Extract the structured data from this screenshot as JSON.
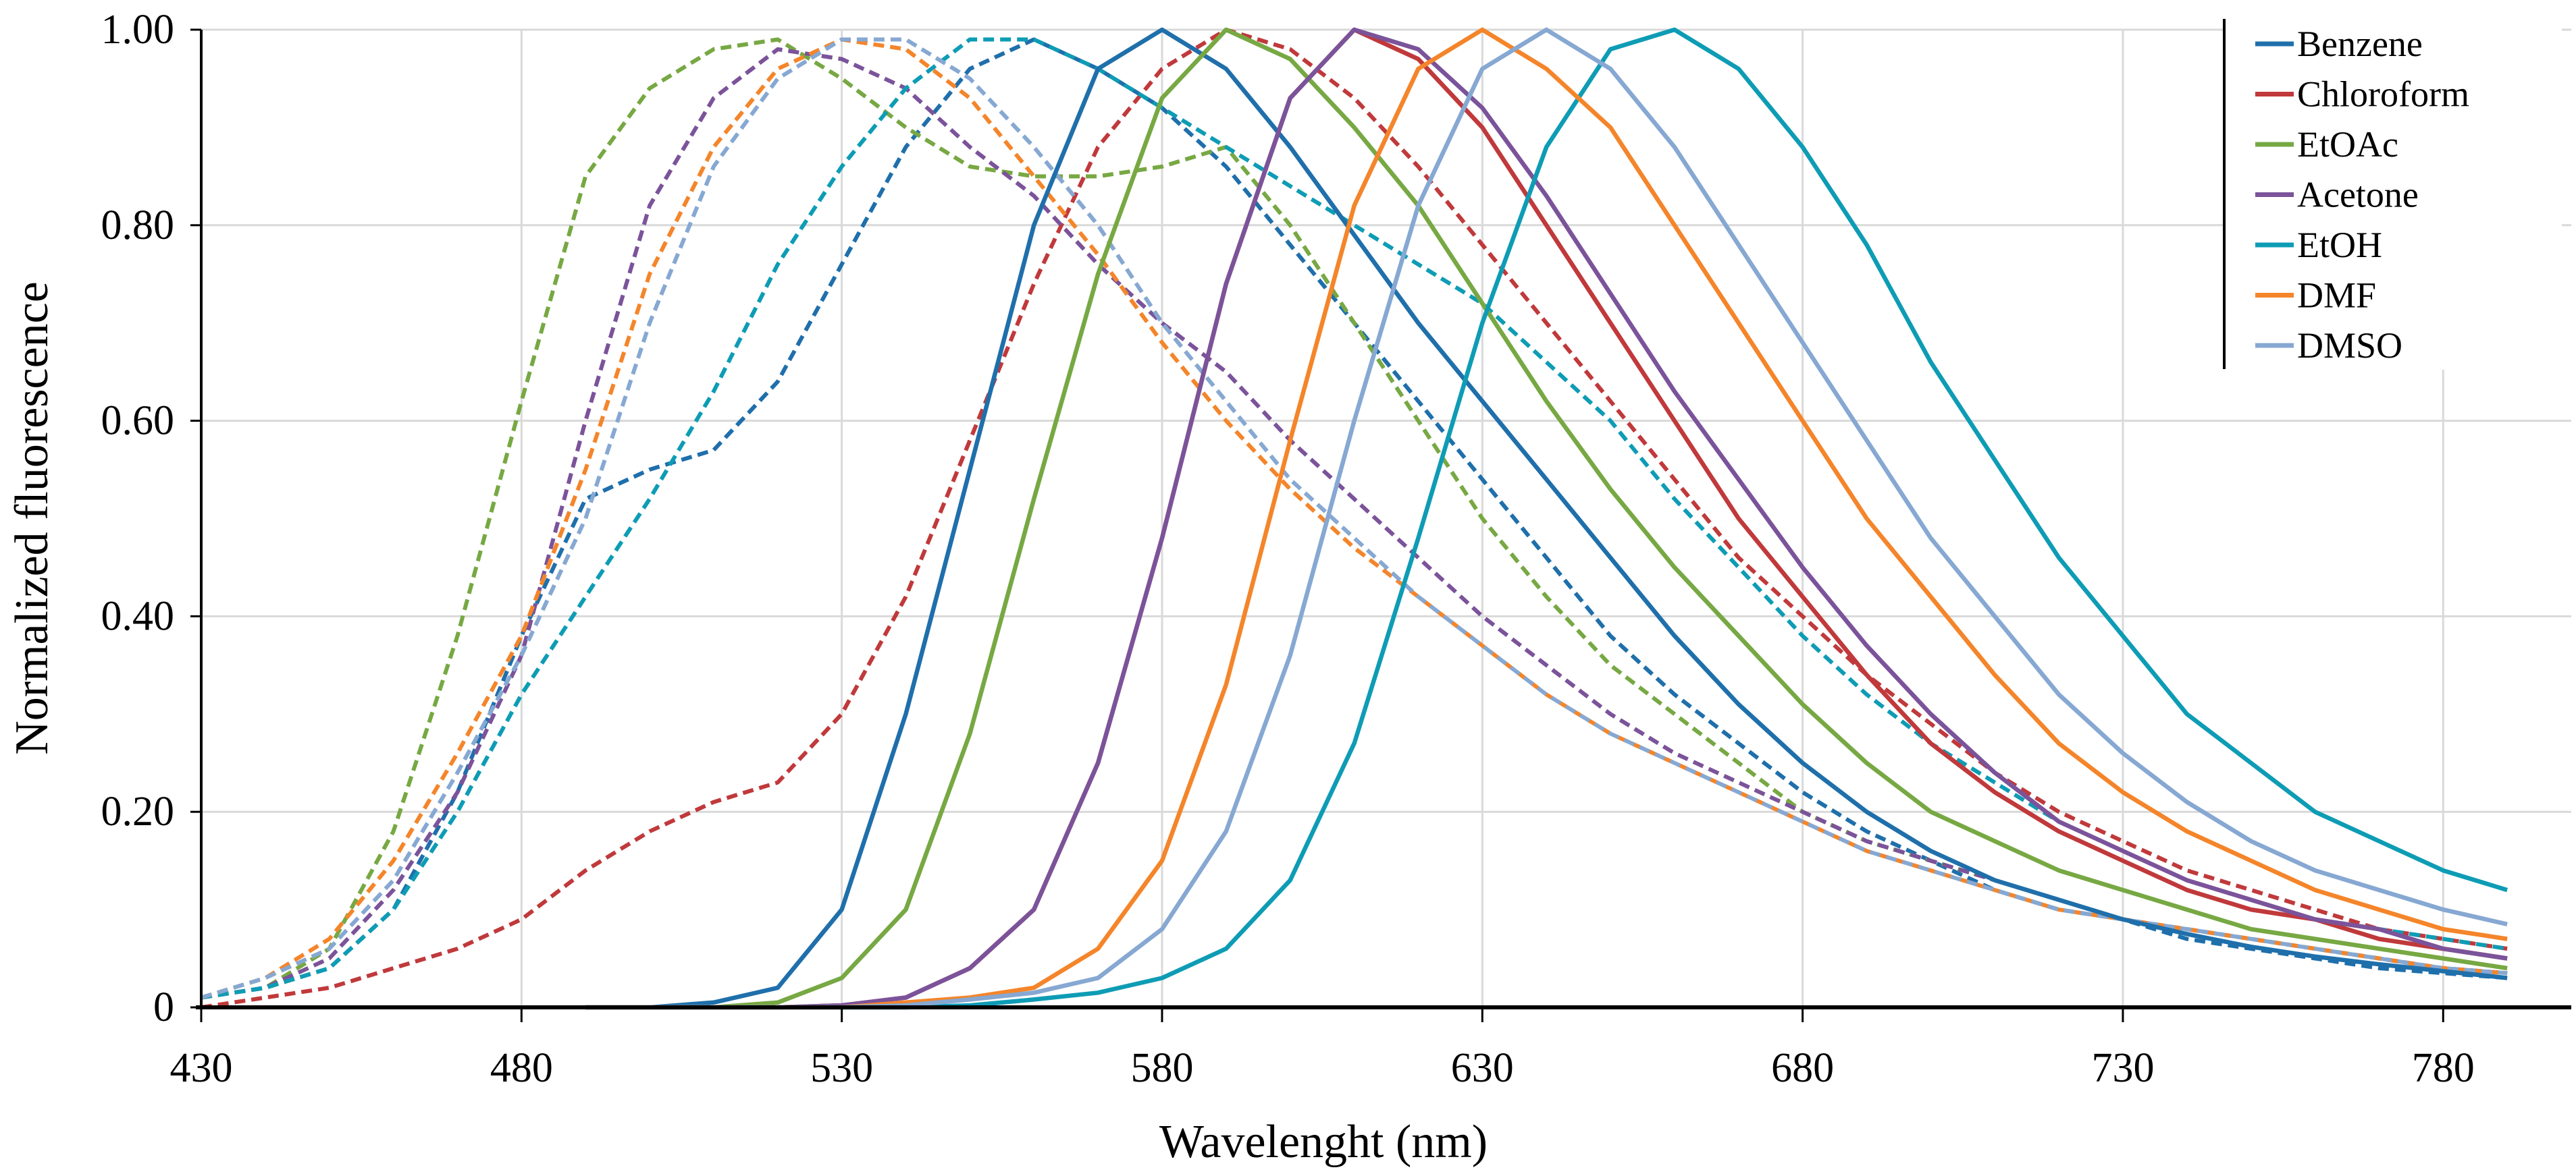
{
  "chart_data": {
    "type": "line",
    "xlabel": "Wavelenght (nm)",
    "ylabel": "Normalized fluorescence",
    "xlim": [
      430,
      800
    ],
    "ylim": [
      0,
      1
    ],
    "x_ticks": [
      "430",
      "480",
      "530",
      "580",
      "630",
      "680",
      "730",
      "780"
    ],
    "x_tick_values": [
      430,
      480,
      530,
      580,
      630,
      680,
      730,
      780
    ],
    "y_ticks": [
      "0",
      "0.20",
      "0.40",
      "0.60",
      "0.80",
      "1.00"
    ],
    "y_tick_values": [
      0,
      0.2,
      0.4,
      0.6,
      0.8,
      1.0
    ],
    "grid": true,
    "legend_position": "top-right",
    "x": [
      430,
      440,
      450,
      460,
      470,
      480,
      490,
      500,
      510,
      520,
      530,
      540,
      550,
      560,
      570,
      580,
      590,
      600,
      610,
      620,
      630,
      640,
      650,
      660,
      670,
      680,
      690,
      700,
      710,
      720,
      730,
      740,
      750,
      760,
      770,
      780,
      790
    ],
    "series": [
      {
        "name": "Benzene",
        "color": "#1f6fab",
        "emission": [
          null,
          null,
          null,
          null,
          null,
          null,
          0,
          0,
          0.005,
          0.02,
          0.1,
          0.3,
          0.55,
          0.8,
          0.96,
          1.0,
          0.96,
          0.88,
          0.79,
          0.7,
          0.62,
          0.54,
          0.46,
          0.38,
          0.31,
          0.25,
          0.2,
          0.16,
          0.13,
          0.11,
          0.09,
          0.075,
          0.062,
          0.052,
          0.044,
          0.037,
          0.03
        ],
        "excitation": [
          0.01,
          0.02,
          0.04,
          0.1,
          0.22,
          0.38,
          0.52,
          0.55,
          0.57,
          0.64,
          0.76,
          0.88,
          0.96,
          0.99,
          0.96,
          0.92,
          0.86,
          0.78,
          0.7,
          0.62,
          0.54,
          0.46,
          0.38,
          0.32,
          0.27,
          0.22,
          0.18,
          0.15,
          0.12,
          0.1,
          0.09,
          0.07,
          0.06,
          0.05,
          0.04,
          0.035,
          0.03
        ]
      },
      {
        "name": "Chloroform",
        "color": "#c0393b",
        "emission": [
          null,
          null,
          null,
          null,
          null,
          null,
          0,
          0,
          0,
          0,
          0.002,
          0.01,
          0.04,
          0.1,
          0.25,
          0.48,
          0.74,
          0.93,
          1.0,
          0.97,
          0.9,
          0.8,
          0.7,
          0.6,
          0.5,
          0.42,
          0.34,
          0.27,
          0.22,
          0.18,
          0.15,
          0.12,
          0.1,
          0.09,
          0.07,
          0.06,
          0.05
        ],
        "excitation": [
          0.0,
          0.01,
          0.02,
          0.04,
          0.06,
          0.09,
          0.14,
          0.18,
          0.21,
          0.23,
          0.3,
          0.42,
          0.58,
          0.74,
          0.88,
          0.96,
          1.0,
          0.98,
          0.93,
          0.86,
          0.78,
          0.7,
          0.62,
          0.54,
          0.46,
          0.4,
          0.34,
          0.29,
          0.24,
          0.2,
          0.17,
          0.14,
          0.12,
          0.1,
          0.08,
          0.07,
          0.06
        ]
      },
      {
        "name": "EtOAc",
        "color": "#77a843",
        "emission": [
          null,
          null,
          null,
          null,
          null,
          null,
          0,
          0,
          0,
          0.005,
          0.03,
          0.1,
          0.28,
          0.52,
          0.75,
          0.93,
          1.0,
          0.97,
          0.9,
          0.82,
          0.72,
          0.62,
          0.53,
          0.45,
          0.38,
          0.31,
          0.25,
          0.2,
          0.17,
          0.14,
          0.12,
          0.1,
          0.08,
          0.07,
          0.06,
          0.05,
          0.04
        ],
        "excitation": [
          0.01,
          0.02,
          0.06,
          0.18,
          0.38,
          0.62,
          0.85,
          0.94,
          0.98,
          0.99,
          0.95,
          0.9,
          0.86,
          0.85,
          0.85,
          0.86,
          0.88,
          0.8,
          0.7,
          0.6,
          0.5,
          0.42,
          0.35,
          0.3,
          0.25,
          0.2,
          0.17,
          0.15,
          0.13,
          0.11,
          0.09,
          0.08,
          0.07,
          0.06,
          0.05,
          0.04,
          0.035
        ]
      },
      {
        "name": "Acetone",
        "color": "#7b539a",
        "emission": [
          null,
          null,
          null,
          null,
          null,
          null,
          0,
          0,
          0,
          0,
          0.002,
          0.01,
          0.04,
          0.1,
          0.25,
          0.48,
          0.74,
          0.93,
          1.0,
          0.98,
          0.92,
          0.83,
          0.73,
          0.63,
          0.54,
          0.45,
          0.37,
          0.3,
          0.24,
          0.19,
          0.16,
          0.13,
          0.11,
          0.09,
          0.08,
          0.06,
          0.05
        ],
        "excitation": [
          0.01,
          0.02,
          0.05,
          0.12,
          0.22,
          0.36,
          0.6,
          0.82,
          0.93,
          0.98,
          0.97,
          0.94,
          0.88,
          0.83,
          0.76,
          0.7,
          0.65,
          0.58,
          0.52,
          0.46,
          0.4,
          0.35,
          0.3,
          0.26,
          0.23,
          0.2,
          0.17,
          0.15,
          0.13,
          0.11,
          0.09,
          0.08,
          0.07,
          0.06,
          0.05,
          0.04,
          0.035
        ]
      },
      {
        "name": "EtOH",
        "color": "#0e9cb5",
        "emission": [
          null,
          null,
          null,
          null,
          null,
          null,
          0,
          0,
          0,
          0,
          0,
          0,
          0.002,
          0.008,
          0.015,
          0.03,
          0.06,
          0.13,
          0.27,
          0.48,
          0.7,
          0.88,
          0.98,
          1.0,
          0.96,
          0.88,
          0.78,
          0.66,
          0.56,
          0.46,
          0.38,
          0.3,
          0.25,
          0.2,
          0.17,
          0.14,
          0.12
        ],
        "excitation": [
          0.01,
          0.02,
          0.04,
          0.1,
          0.2,
          0.32,
          0.42,
          0.52,
          0.63,
          0.76,
          0.86,
          0.94,
          0.99,
          0.99,
          0.96,
          0.92,
          0.88,
          0.84,
          0.8,
          0.76,
          0.72,
          0.66,
          0.6,
          0.52,
          0.45,
          0.38,
          0.32,
          0.27,
          0.23,
          0.19,
          0.16,
          0.13,
          0.11,
          0.09,
          0.08,
          0.07,
          0.06
        ]
      },
      {
        "name": "DMF",
        "color": "#f4852a",
        "emission": [
          null,
          null,
          null,
          null,
          null,
          null,
          0,
          0,
          0,
          0,
          0,
          0.005,
          0.01,
          0.02,
          0.06,
          0.15,
          0.33,
          0.58,
          0.82,
          0.96,
          1.0,
          0.96,
          0.9,
          0.8,
          0.7,
          0.6,
          0.5,
          0.42,
          0.34,
          0.27,
          0.22,
          0.18,
          0.15,
          0.12,
          0.1,
          0.08,
          0.07
        ],
        "excitation": [
          0.01,
          0.03,
          0.07,
          0.15,
          0.26,
          0.38,
          0.55,
          0.75,
          0.88,
          0.96,
          0.99,
          0.98,
          0.93,
          0.85,
          0.77,
          0.68,
          0.6,
          0.53,
          0.47,
          0.42,
          0.37,
          0.32,
          0.28,
          0.25,
          0.22,
          0.19,
          0.16,
          0.14,
          0.12,
          0.1,
          0.09,
          0.08,
          0.07,
          0.06,
          0.05,
          0.04,
          0.035
        ]
      },
      {
        "name": "DMSO",
        "color": "#86a8d2",
        "emission": [
          null,
          null,
          null,
          null,
          null,
          null,
          0,
          0,
          0,
          0,
          0,
          0.002,
          0.008,
          0.015,
          0.03,
          0.08,
          0.18,
          0.36,
          0.6,
          0.82,
          0.96,
          1.0,
          0.96,
          0.88,
          0.78,
          0.68,
          0.58,
          0.48,
          0.4,
          0.32,
          0.26,
          0.21,
          0.17,
          0.14,
          0.12,
          0.1,
          0.085
        ],
        "excitation": [
          0.01,
          0.03,
          0.06,
          0.13,
          0.24,
          0.36,
          0.5,
          0.7,
          0.86,
          0.95,
          0.99,
          0.99,
          0.95,
          0.88,
          0.8,
          0.7,
          0.62,
          0.54,
          0.48,
          0.42,
          0.37,
          0.32,
          0.28,
          0.25,
          0.22,
          0.19,
          0.16,
          0.14,
          0.12,
          0.1,
          0.09,
          0.08,
          0.07,
          0.06,
          0.05,
          0.04,
          0.035
        ]
      }
    ]
  }
}
